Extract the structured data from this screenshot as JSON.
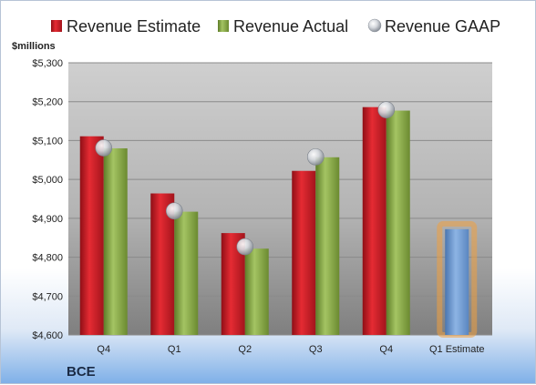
{
  "chart_data": {
    "type": "bar",
    "company": "BCE",
    "unit_label": "$millions",
    "categories": [
      "Q4",
      "Q1",
      "Q2",
      "Q3",
      "Q4",
      "Q1 Estimate"
    ],
    "series": [
      {
        "name": "Revenue Estimate",
        "type": "bar",
        "color": "#d0202a",
        "values": [
          5111,
          4964,
          4862,
          5022,
          5186,
          null
        ]
      },
      {
        "name": "Revenue Actual",
        "type": "bar",
        "color": "#8aab47",
        "values": [
          5080,
          4917,
          4822,
          5057,
          5177,
          null
        ]
      },
      {
        "name": "Revenue GAAP",
        "type": "marker",
        "color": "#c8cdd4",
        "values": [
          5081,
          4919,
          4827,
          5058,
          5179,
          null
        ]
      }
    ],
    "forecast": {
      "category": "Q1 Estimate",
      "value": 4872,
      "color": "#6f9bd1",
      "glow": "#f0a040"
    },
    "ylim": [
      4600,
      5300
    ],
    "yticks": [
      4600,
      4700,
      4800,
      4900,
      5000,
      5100,
      5200,
      5300
    ],
    "ytick_labels": [
      "$4,600",
      "$4,700",
      "$4,800",
      "$4,900",
      "$5,000",
      "$5,100",
      "$5,200",
      "$5,300"
    ],
    "grid": true,
    "legend_position": "top"
  }
}
